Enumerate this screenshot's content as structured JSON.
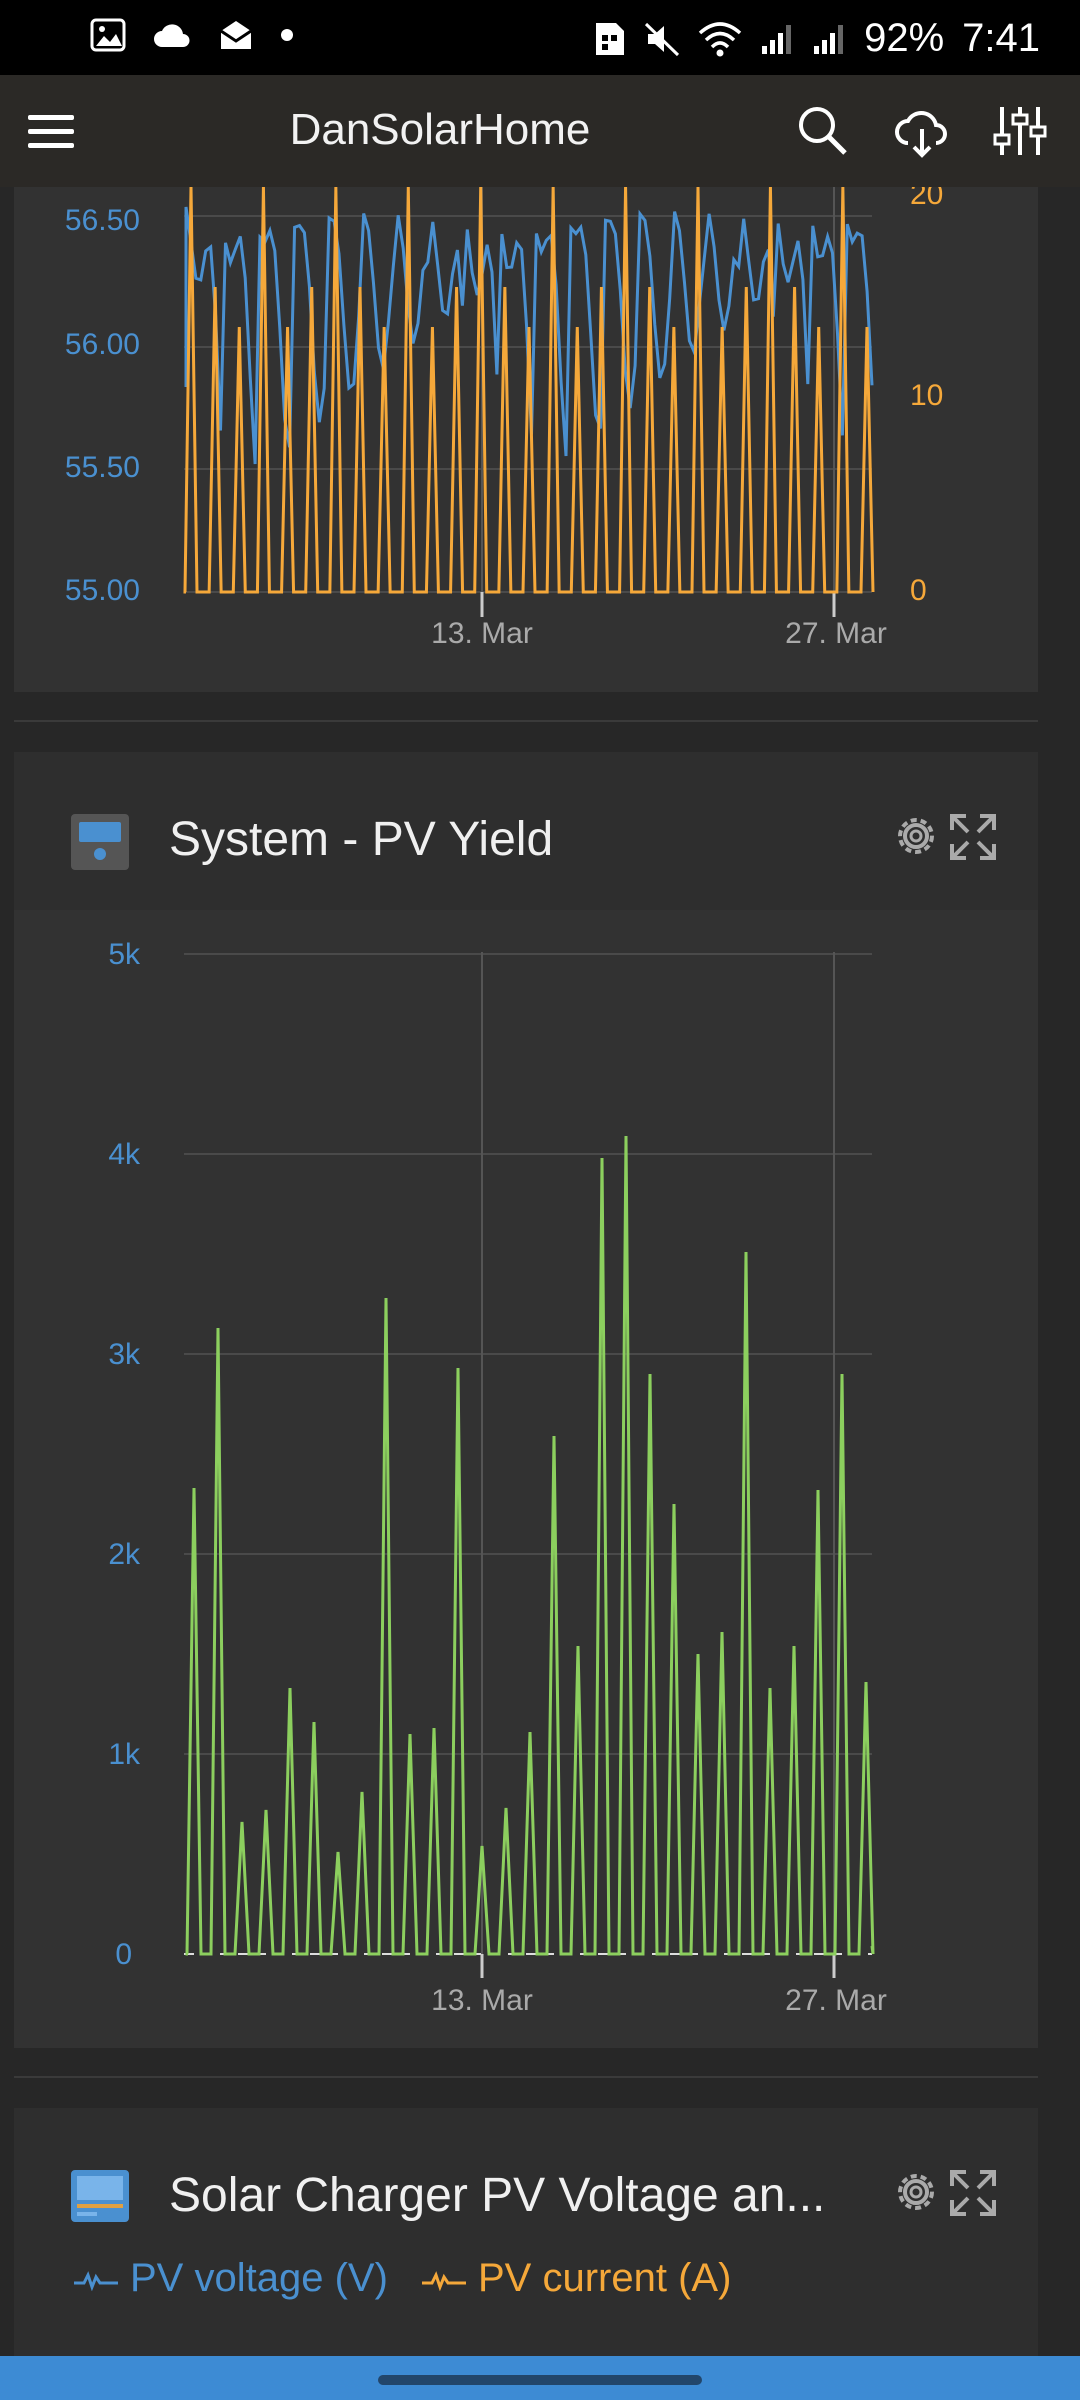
{
  "status_bar": {
    "battery": "92%",
    "time": "7:41"
  },
  "app_bar": {
    "title": "DanSolarHome",
    "icons": [
      "menu-icon",
      "search-icon",
      "cloud-download-icon",
      "sliders-icon"
    ]
  },
  "colors": {
    "voltage": "#4a90d0",
    "current": "#f5a83a",
    "yield": "#8ccf5e"
  },
  "chart_top": {
    "left_axis_ticks": [
      "56.50",
      "56.00",
      "55.50",
      "55.00"
    ],
    "right_axis_ticks": [
      "20",
      "10",
      "0"
    ],
    "x_ticks": [
      "13. Mar",
      "27. Mar"
    ]
  },
  "card_pv_yield": {
    "title": "System - PV Yield",
    "icons": [
      "device-icon",
      "gear-icon",
      "expand-icon"
    ]
  },
  "chart_data": [
    {
      "type": "line",
      "x_ticks": [
        "13. Mar",
        "27. Mar"
      ],
      "y_ticks": [
        "0",
        "1k",
        "2k",
        "3k",
        "4k",
        "5k"
      ],
      "ylim": [
        0,
        5000
      ],
      "series": [
        {
          "color": "#8ccf5e",
          "peaks": [
            2330,
            3130,
            660,
            720,
            1330,
            1160,
            510,
            810,
            3280,
            1100,
            1130,
            2930,
            540,
            730,
            1110,
            2590,
            1540,
            3980,
            4090,
            2900,
            2250,
            1500,
            1610,
            3510,
            1330,
            1540,
            2320,
            2900,
            1360
          ]
        }
      ]
    }
  ],
  "card_solar": {
    "title": "Solar Charger PV Voltage an...",
    "legend": [
      {
        "label": "PV voltage (V)",
        "color": "#4a90d0"
      },
      {
        "label": "PV current (A)",
        "color": "#f5a83a"
      }
    ]
  }
}
